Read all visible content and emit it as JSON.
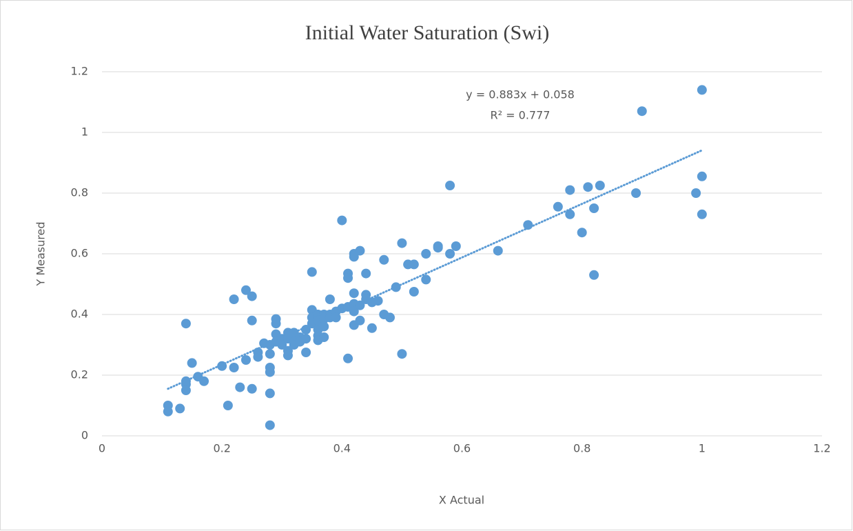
{
  "chart_data": {
    "type": "scatter",
    "title": "Initial Water Saturation (Swi)",
    "x_label": "X Actual",
    "y_label": "Y  Measured",
    "color": "#5b9bd5",
    "grid": true,
    "xlim": [
      0,
      1.2
    ],
    "xticks": [
      0,
      0.2,
      0.4,
      0.6,
      0.8,
      1,
      1.2
    ],
    "ylim": [
      0,
      1.2
    ],
    "yticks": [
      0,
      0.2,
      0.4,
      0.6,
      0.8,
      1,
      1.2
    ],
    "x": [
      0.11,
      0.11,
      0.13,
      0.14,
      0.14,
      0.14,
      0.14,
      0.15,
      0.16,
      0.17,
      0.2,
      0.21,
      0.22,
      0.22,
      0.23,
      0.24,
      0.24,
      0.25,
      0.25,
      0.25,
      0.26,
      0.26,
      0.27,
      0.28,
      0.28,
      0.28,
      0.28,
      0.28,
      0.28,
      0.29,
      0.29,
      0.29,
      0.29,
      0.3,
      0.3,
      0.31,
      0.31,
      0.31,
      0.31,
      0.32,
      0.32,
      0.32,
      0.33,
      0.33,
      0.34,
      0.34,
      0.34,
      0.35,
      0.35,
      0.35,
      0.35,
      0.36,
      0.36,
      0.36,
      0.36,
      0.36,
      0.37,
      0.37,
      0.37,
      0.37,
      0.38,
      0.38,
      0.38,
      0.39,
      0.39,
      0.4,
      0.4,
      0.41,
      0.41,
      0.41,
      0.41,
      0.42,
      0.42,
      0.42,
      0.42,
      0.42,
      0.42,
      0.43,
      0.43,
      0.43,
      0.44,
      0.44,
      0.44,
      0.45,
      0.45,
      0.46,
      0.47,
      0.47,
      0.48,
      0.49,
      0.5,
      0.5,
      0.51,
      0.52,
      0.52,
      0.54,
      0.54,
      0.56,
      0.56,
      0.58,
      0.58,
      0.59,
      0.66,
      0.71,
      0.76,
      0.78,
      0.78,
      0.8,
      0.81,
      0.82,
      0.82,
      0.83,
      0.89,
      0.9,
      0.99,
      1,
      1,
      1
    ],
    "values": [
      0.1,
      0.08,
      0.09,
      0.37,
      0.18,
      0.17,
      0.15,
      0.24,
      0.195,
      0.18,
      0.23,
      0.1,
      0.45,
      0.225,
      0.16,
      0.48,
      0.25,
      0.46,
      0.38,
      0.155,
      0.275,
      0.26,
      0.305,
      0.3,
      0.27,
      0.225,
      0.21,
      0.14,
      0.035,
      0.385,
      0.37,
      0.335,
      0.31,
      0.32,
      0.3,
      0.34,
      0.32,
      0.28,
      0.265,
      0.34,
      0.31,
      0.3,
      0.325,
      0.31,
      0.35,
      0.32,
      0.275,
      0.54,
      0.415,
      0.39,
      0.37,
      0.4,
      0.38,
      0.35,
      0.33,
      0.315,
      0.4,
      0.385,
      0.36,
      0.325,
      0.45,
      0.4,
      0.39,
      0.41,
      0.39,
      0.71,
      0.42,
      0.535,
      0.52,
      0.425,
      0.255,
      0.6,
      0.59,
      0.47,
      0.435,
      0.41,
      0.365,
      0.61,
      0.43,
      0.38,
      0.535,
      0.465,
      0.45,
      0.44,
      0.355,
      0.445,
      0.58,
      0.4,
      0.39,
      0.49,
      0.635,
      0.27,
      0.565,
      0.565,
      0.475,
      0.6,
      0.515,
      0.625,
      0.62,
      0.825,
      0.6,
      0.625,
      0.61,
      0.695,
      0.755,
      0.81,
      0.73,
      0.67,
      0.82,
      0.75,
      0.53,
      0.825,
      0.8,
      1.07,
      0.8,
      1.14,
      0.855,
      0.73
    ],
    "trendline": {
      "equation": "y = 0.883x + 0.058",
      "r_squared": "R² = 0.777",
      "slope": 0.883,
      "intercept": 0.058
    }
  }
}
